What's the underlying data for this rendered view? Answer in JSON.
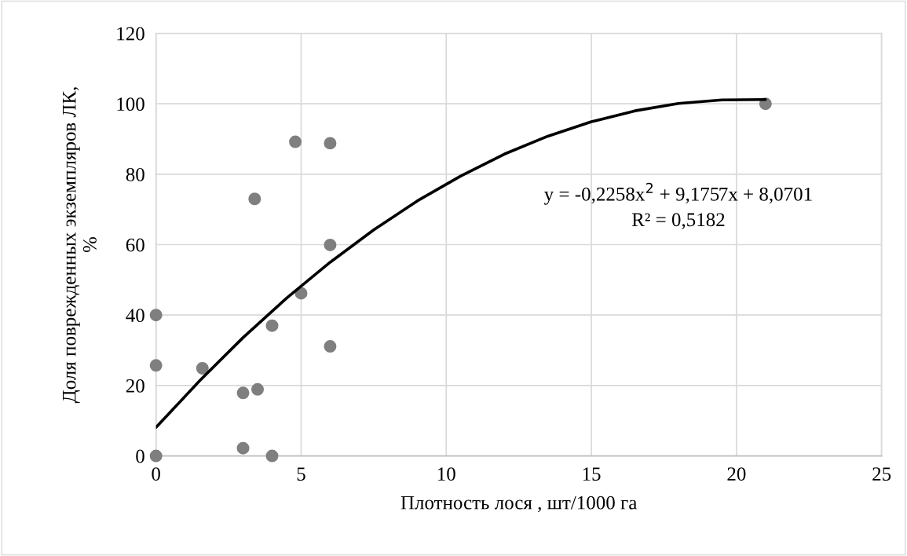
{
  "chart_data": {
    "type": "scatter",
    "xlabel": "Плотность лося , шт/1000 га",
    "ylabel": "Доля поврежденных экземпляров ЛК, %",
    "annotations": [
      "y = -0,2258x$^{2}$ + 9,1757x + 8,0701",
      "R² = 0,5182"
    ],
    "xlim": [
      0,
      25
    ],
    "xticks": [
      0,
      5,
      10,
      15,
      20,
      25
    ],
    "ylim": [
      0,
      120
    ],
    "yticks": [
      0,
      20,
      40,
      60,
      80,
      100,
      120
    ],
    "grid": true,
    "marker": "circle",
    "series": [
      {
        "color": "#7f7f7f",
        "x": [
          0,
          0,
          0,
          1.6,
          3.0,
          3.0,
          3.5,
          4.0,
          4.0,
          3.4,
          4.8,
          5.0,
          6.0,
          6.0,
          6.0,
          21.0
        ],
        "values": [
          0,
          25.7,
          40,
          24.9,
          17.9,
          2.2,
          18.9,
          37.0,
          0,
          73.0,
          89.2,
          46.2,
          88.8,
          59.9,
          31.1,
          100
        ]
      },
      {
        "type": "line",
        "color": "#000000",
        "marker": "none",
        "line_style": "solid",
        "x": [
          0,
          1.5,
          3,
          4.5,
          6,
          7.5,
          9,
          10.5,
          12,
          13.5,
          15,
          16.5,
          18,
          19.5,
          21
        ],
        "values": [
          8.1,
          21.3,
          33.6,
          44.8,
          55.0,
          64.2,
          72.4,
          79.5,
          85.7,
          90.8,
          94.9,
          98.0,
          100.1,
          101.1,
          101.2
        ]
      }
    ]
  }
}
